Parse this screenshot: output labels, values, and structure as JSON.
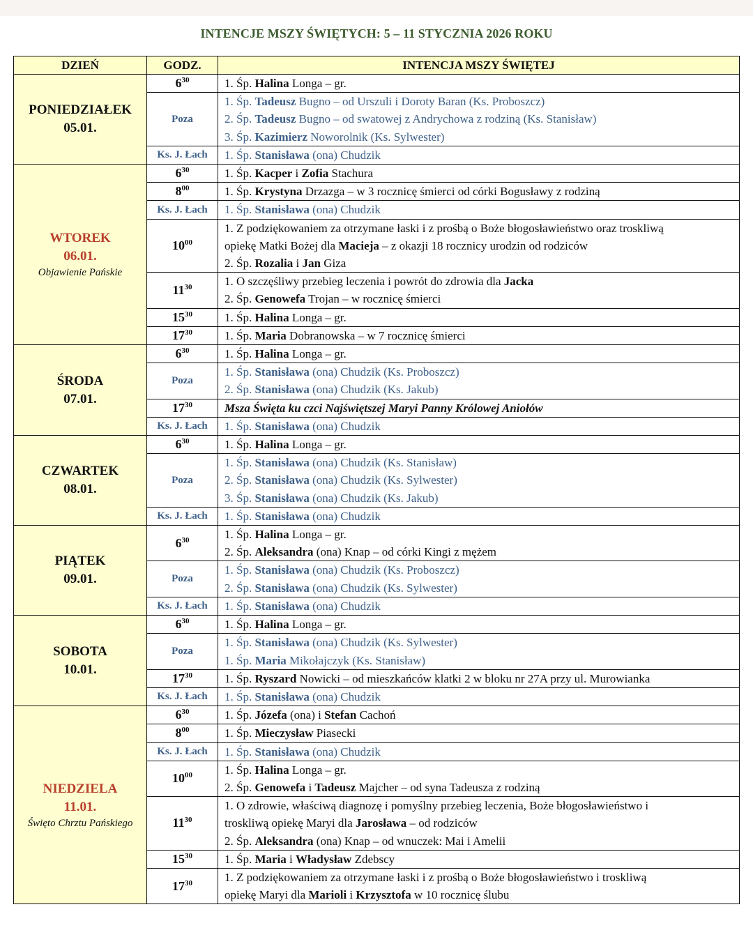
{
  "title": "INTENCJE MSZY ŚWIĘTYCH: 5 – 11 STYCZNIA 2026 ROKU",
  "colors": {
    "title": "#3b5a2c",
    "header_bg": "#fefecb",
    "day_bg": "#fefed0",
    "festive": "#b8402c",
    "secondary": "#3f6189"
  },
  "headers": {
    "day": "DZIEŃ",
    "time": "GODZ.",
    "intention": "INTENCJA MSZY ŚWIĘTEJ"
  },
  "days": [
    {
      "name": "PONIEDZIAŁEK",
      "date": "05.01.",
      "feast": "",
      "festive": false,
      "rows": [
        {
          "h": "6",
          "m": "30",
          "lines": [
            [
              [
                "1. Śp. ",
                0
              ],
              [
                "Halina",
                1
              ],
              [
                " Longa – gr.",
                0
              ]
            ]
          ]
        },
        {
          "label": "Poza",
          "lines": [
            [
              [
                "1. Śp. ",
                0
              ],
              [
                "Tadeusz",
                1
              ],
              [
                " Bugno – od Urszuli i Doroty Baran (Ks. Proboszcz)",
                0
              ]
            ],
            [
              [
                "2. Śp. ",
                0
              ],
              [
                "Tadeusz",
                1
              ],
              [
                " Bugno – od swatowej z Andrychowa z rodziną (Ks. Stanisław)",
                0
              ]
            ],
            [
              [
                "3. Śp. ",
                0
              ],
              [
                "Kazimierz",
                1
              ],
              [
                " Noworolnik (Ks. Sylwester)",
                0
              ]
            ]
          ]
        },
        {
          "label": "Ks. J. Łach",
          "lines": [
            [
              [
                "1. Śp. ",
                0
              ],
              [
                "Stanisława",
                1
              ],
              [
                " (ona) Chudzik",
                0
              ]
            ]
          ]
        }
      ]
    },
    {
      "name": "WTOREK",
      "date": "06.01.",
      "feast": "Objawienie Pańskie",
      "festive": true,
      "rows": [
        {
          "h": "6",
          "m": "30",
          "lines": [
            [
              [
                "1. Śp. ",
                0
              ],
              [
                "Kacper",
                1
              ],
              [
                " i ",
                0
              ],
              [
                "Zofia",
                1
              ],
              [
                " Stachura",
                0
              ]
            ]
          ]
        },
        {
          "h": "8",
          "m": "00",
          "lines": [
            [
              [
                "1. Śp. ",
                0
              ],
              [
                "Krystyna",
                1
              ],
              [
                " Drzazga – w 3 rocznicę śmierci od córki Bogusławy z rodziną",
                0
              ]
            ]
          ]
        },
        {
          "label": "Ks. J. Łach",
          "lines": [
            [
              [
                "1. Śp. ",
                0
              ],
              [
                "Stanisława",
                1
              ],
              [
                " (ona) Chudzik",
                0
              ]
            ]
          ]
        },
        {
          "h": "10",
          "m": "00",
          "lines": [
            [
              [
                "1. Z podziękowaniem za otrzymane łaski i z prośbą o Boże błogosławieństwo oraz troskliwą",
                0
              ]
            ],
            [
              [
                "opiekę Matki Bożej dla ",
                0
              ],
              [
                "Macieja",
                1
              ],
              [
                " – z okazji 18 rocznicy urodzin od rodziców",
                0
              ]
            ],
            [
              [
                "2. Śp. ",
                0
              ],
              [
                "Rozalia",
                1
              ],
              [
                " i ",
                0
              ],
              [
                "Jan",
                1
              ],
              [
                " Giza",
                0
              ]
            ]
          ]
        },
        {
          "h": "11",
          "m": "30",
          "lines": [
            [
              [
                "1. O szczęśliwy przebieg leczenia i powrót do zdrowia dla ",
                0
              ],
              [
                "Jacka",
                1
              ]
            ],
            [
              [
                "2. Śp. ",
                0
              ],
              [
                "Genowefa",
                1
              ],
              [
                " Trojan – w rocznicę śmierci",
                0
              ]
            ]
          ]
        },
        {
          "h": "15",
          "m": "30",
          "lines": [
            [
              [
                "1. Śp. ",
                0
              ],
              [
                "Halina",
                1
              ],
              [
                " Longa – gr.",
                0
              ]
            ]
          ]
        },
        {
          "h": "17",
          "m": "30",
          "lines": [
            [
              [
                "1. Śp. ",
                0
              ],
              [
                "Maria",
                1
              ],
              [
                " Dobranowska – w 7 rocznicę śmierci",
                0
              ]
            ]
          ]
        }
      ]
    },
    {
      "name": "ŚRODA",
      "date": "07.01.",
      "feast": "",
      "festive": false,
      "rows": [
        {
          "h": "6",
          "m": "30",
          "lines": [
            [
              [
                "1. Śp. ",
                0
              ],
              [
                "Halina",
                1
              ],
              [
                " Longa – gr.",
                0
              ]
            ]
          ]
        },
        {
          "label": "Poza",
          "lines": [
            [
              [
                "1. Śp. ",
                0
              ],
              [
                "Stanisława",
                1
              ],
              [
                " (ona) Chudzik (Ks. Proboszcz)",
                0
              ]
            ],
            [
              [
                "2. Śp. ",
                0
              ],
              [
                "Stanisława",
                1
              ],
              [
                " (ona) Chudzik (Ks. Jakub)",
                0
              ]
            ]
          ]
        },
        {
          "h": "17",
          "m": "30",
          "lines": [
            [
              [
                "Msza Święta ku czci Najświętszej Maryi Panny Królowej Aniołów",
                2
              ]
            ]
          ]
        },
        {
          "label": "Ks. J. Łach",
          "lines": [
            [
              [
                "1. Śp. ",
                0
              ],
              [
                "Stanisława",
                1
              ],
              [
                " (ona) Chudzik",
                0
              ]
            ]
          ]
        }
      ]
    },
    {
      "name": "CZWARTEK",
      "date": "08.01.",
      "feast": "",
      "festive": false,
      "rows": [
        {
          "h": "6",
          "m": "30",
          "lines": [
            [
              [
                "1. Śp. ",
                0
              ],
              [
                "Halina",
                1
              ],
              [
                " Longa – gr.",
                0
              ]
            ]
          ]
        },
        {
          "label": "Poza",
          "lines": [
            [
              [
                "1. Śp. ",
                0
              ],
              [
                "Stanisława",
                1
              ],
              [
                " (ona) Chudzik (Ks. Stanisław)",
                0
              ]
            ],
            [
              [
                "2. Śp. ",
                0
              ],
              [
                "Stanisława",
                1
              ],
              [
                " (ona) Chudzik (Ks. Sylwester)",
                0
              ]
            ],
            [
              [
                "3. Śp. ",
                0
              ],
              [
                "Stanisława",
                1
              ],
              [
                " (ona) Chudzik (Ks. Jakub)",
                0
              ]
            ]
          ]
        },
        {
          "label": "Ks. J. Łach",
          "lines": [
            [
              [
                "1. Śp. ",
                0
              ],
              [
                "Stanisława",
                1
              ],
              [
                " (ona) Chudzik",
                0
              ]
            ]
          ]
        }
      ]
    },
    {
      "name": "PIĄTEK",
      "date": "09.01.",
      "feast": "",
      "festive": false,
      "rows": [
        {
          "h": "6",
          "m": "30",
          "lines": [
            [
              [
                "1. Śp. ",
                0
              ],
              [
                "Halina",
                1
              ],
              [
                " Longa – gr.",
                0
              ]
            ],
            [
              [
                "2. Śp. ",
                0
              ],
              [
                "Aleksandra",
                1
              ],
              [
                " (ona) Knap – od córki Kingi z mężem",
                0
              ]
            ]
          ]
        },
        {
          "label": "Poza",
          "lines": [
            [
              [
                "1. Śp. ",
                0
              ],
              [
                "Stanisława",
                1
              ],
              [
                " (ona) Chudzik (Ks. Proboszcz)",
                0
              ]
            ],
            [
              [
                "2. Śp. ",
                0
              ],
              [
                "Stanisława",
                1
              ],
              [
                " (ona) Chudzik (Ks. Sylwester)",
                0
              ]
            ]
          ]
        },
        {
          "label": "Ks. J. Łach",
          "lines": [
            [
              [
                "1. Śp. ",
                0
              ],
              [
                "Stanisława",
                1
              ],
              [
                " (ona) Chudzik",
                0
              ]
            ]
          ]
        }
      ]
    },
    {
      "name": "SOBOTA",
      "date": "10.01.",
      "feast": "",
      "festive": false,
      "rows": [
        {
          "h": "6",
          "m": "30",
          "lines": [
            [
              [
                "1. Śp. ",
                0
              ],
              [
                "Halina",
                1
              ],
              [
                " Longa – gr.",
                0
              ]
            ]
          ]
        },
        {
          "label": "Poza",
          "lines": [
            [
              [
                "1. Śp. ",
                0
              ],
              [
                "Stanisława",
                1
              ],
              [
                " (ona) Chudzik (Ks. Sylwester)",
                0
              ]
            ],
            [
              [
                "1. Śp. ",
                0
              ],
              [
                "Maria",
                1
              ],
              [
                " Mikołajczyk (Ks. Stanisław)",
                0
              ]
            ]
          ]
        },
        {
          "h": "17",
          "m": "30",
          "lines": [
            [
              [
                "1. Śp. ",
                0
              ],
              [
                "Ryszard",
                1
              ],
              [
                " Nowicki – od mieszkańców klatki 2 w bloku nr 27A przy ul. Murowianka",
                0
              ]
            ]
          ]
        },
        {
          "label": "Ks. J. Łach",
          "lines": [
            [
              [
                "1. Śp. ",
                0
              ],
              [
                "Stanisława",
                1
              ],
              [
                " (ona) Chudzik",
                0
              ]
            ]
          ]
        }
      ]
    },
    {
      "name": "NIEDZIELA",
      "date": "11.01.",
      "feast": "Święto Chrztu Pańskiego",
      "festive": true,
      "rows": [
        {
          "h": "6",
          "m": "30",
          "lines": [
            [
              [
                "1. Śp. ",
                0
              ],
              [
                "Józefa",
                1
              ],
              [
                " (ona) i ",
                0
              ],
              [
                "Stefan",
                1
              ],
              [
                " Cachoń",
                0
              ]
            ]
          ]
        },
        {
          "h": "8",
          "m": "00",
          "lines": [
            [
              [
                "1. Śp. ",
                0
              ],
              [
                "Mieczysław",
                1
              ],
              [
                " Piasecki",
                0
              ]
            ]
          ]
        },
        {
          "label": "Ks. J. Łach",
          "lines": [
            [
              [
                "1. Śp. ",
                0
              ],
              [
                "Stanisława",
                1
              ],
              [
                " (ona) Chudzik",
                0
              ]
            ]
          ]
        },
        {
          "h": "10",
          "m": "00",
          "lines": [
            [
              [
                "1. Śp. ",
                0
              ],
              [
                "Halina",
                1
              ],
              [
                " Longa – gr.",
                0
              ]
            ],
            [
              [
                "2. Śp. ",
                0
              ],
              [
                "Genowefa",
                1
              ],
              [
                " i ",
                0
              ],
              [
                "Tadeusz",
                1
              ],
              [
                " Majcher – od syna Tadeusza z rodziną",
                0
              ]
            ]
          ]
        },
        {
          "h": "11",
          "m": "30",
          "lines": [
            [
              [
                "1. O zdrowie, właściwą diagnozę i pomyślny przebieg leczenia, Boże błogosławieństwo i",
                0
              ]
            ],
            [
              [
                "troskliwą opiekę Maryi dla ",
                0
              ],
              [
                "Jarosława",
                1
              ],
              [
                " – od rodziców",
                0
              ]
            ],
            [
              [
                "2. Śp. ",
                0
              ],
              [
                "Aleksandra",
                1
              ],
              [
                " (ona) Knap – od wnuczek: Mai i Amelii",
                0
              ]
            ]
          ]
        },
        {
          "h": "15",
          "m": "30",
          "lines": [
            [
              [
                "1. Śp. ",
                0
              ],
              [
                "Maria",
                1
              ],
              [
                " i ",
                0
              ],
              [
                "Władysław",
                1
              ],
              [
                " Zdebscy",
                0
              ]
            ]
          ]
        },
        {
          "h": "17",
          "m": "30",
          "lines": [
            [
              [
                "1. Z podziękowaniem za otrzymane łaski i z prośbą o Boże błogosławieństwo i troskliwą",
                0
              ]
            ],
            [
              [
                "opiekę Maryi dla ",
                0
              ],
              [
                "Marioli",
                1
              ],
              [
                " i ",
                0
              ],
              [
                "Krzysztofa",
                1
              ],
              [
                " w 10 rocznicę ślubu",
                0
              ]
            ]
          ]
        }
      ]
    }
  ]
}
